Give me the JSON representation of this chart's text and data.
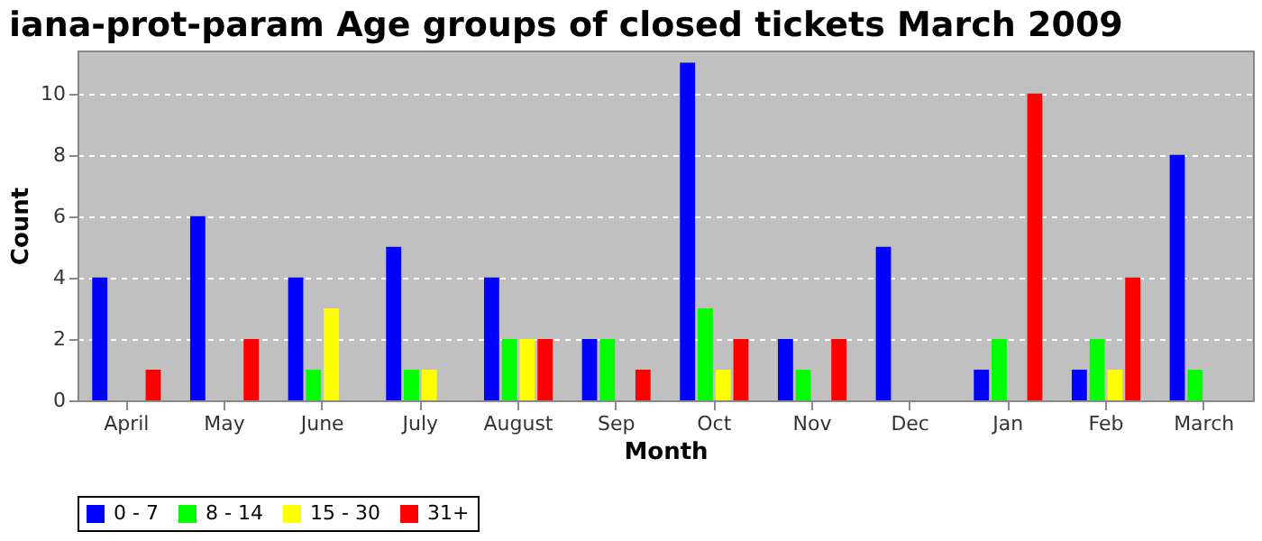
{
  "chart_data": {
    "type": "bar",
    "title": "iana-prot-param Age groups of closed tickets March 2009",
    "xlabel": "Month",
    "ylabel": "Count",
    "categories": [
      "April",
      "May",
      "June",
      "July",
      "August",
      "Sep",
      "Oct",
      "Nov",
      "Dec",
      "Jan",
      "Feb",
      "March"
    ],
    "series": [
      {
        "name": "0 - 7",
        "color": "#0000ff",
        "values": [
          4,
          6,
          4,
          5,
          4,
          2,
          11,
          2,
          5,
          1,
          1,
          8
        ]
      },
      {
        "name": "8 - 14",
        "color": "#00ff00",
        "values": [
          0,
          0,
          1,
          1,
          2,
          2,
          3,
          1,
          0,
          2,
          2,
          1
        ]
      },
      {
        "name": "15 - 30",
        "color": "#ffff00",
        "values": [
          0,
          0,
          3,
          1,
          2,
          0,
          1,
          0,
          0,
          0,
          1,
          0
        ]
      },
      {
        "name": "31+",
        "color": "#ff0000",
        "values": [
          1,
          2,
          0,
          0,
          2,
          1,
          2,
          2,
          0,
          10,
          4,
          0
        ]
      }
    ],
    "ylim": [
      0,
      11.4
    ],
    "yticks": [
      0,
      2,
      4,
      6,
      8,
      10
    ],
    "grid": "y",
    "legend": "bottom"
  }
}
